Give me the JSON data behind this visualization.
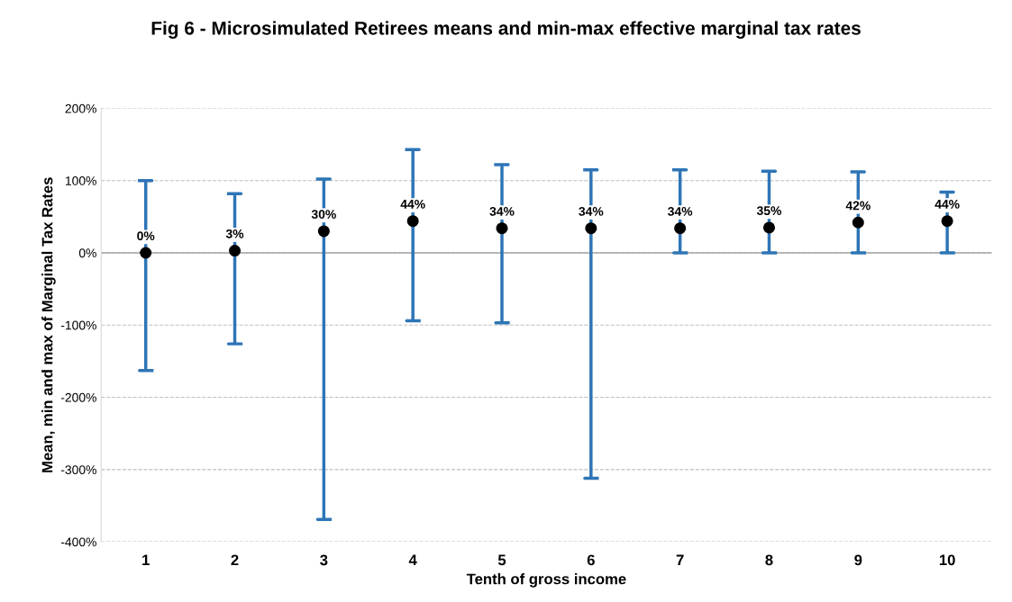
{
  "chart_data": {
    "type": "scatter",
    "title": "Fig 6 - Microsimulated Retirees means and min-max effective marginal tax rates",
    "xlabel": "Tenth of gross income",
    "ylabel": "Mean, min and max of Marginal Tax Rates",
    "categories": [
      "1",
      "2",
      "3",
      "4",
      "5",
      "6",
      "7",
      "8",
      "9",
      "10"
    ],
    "series": [
      {
        "color": "#000000",
        "values": [
          0,
          3,
          30,
          44,
          34,
          34,
          34,
          35,
          42,
          44
        ],
        "errors": [
          [
            -163,
            100
          ],
          [
            -126,
            82
          ],
          [
            -369,
            102
          ],
          [
            -94,
            143
          ],
          [
            -97,
            122
          ],
          [
            -312,
            115
          ],
          [
            0,
            115
          ],
          [
            0,
            113
          ],
          [
            0,
            112
          ],
          [
            0,
            84
          ]
        ],
        "value_labels": [
          "0%",
          "3%",
          "30%",
          "44%",
          "34%",
          "34%",
          "34%",
          "35%",
          "42%",
          "44%"
        ]
      }
    ],
    "ylim": [
      -400,
      200
    ],
    "yticks": [
      {
        "value": -400,
        "label": "-400%"
      },
      {
        "value": -300,
        "label": "-300%"
      },
      {
        "value": -200,
        "label": "-200%"
      },
      {
        "value": -100,
        "label": "-100%"
      },
      {
        "value": 0,
        "label": "0%"
      },
      {
        "value": 100,
        "label": "100%"
      },
      {
        "value": 200,
        "label": "200%"
      }
    ],
    "grid": "y",
    "marker": "circle",
    "legend": false,
    "ref_lines": [
      {
        "axis": "y",
        "value": 0,
        "color": "#a6a6a6",
        "line_style": "solid"
      }
    ]
  }
}
